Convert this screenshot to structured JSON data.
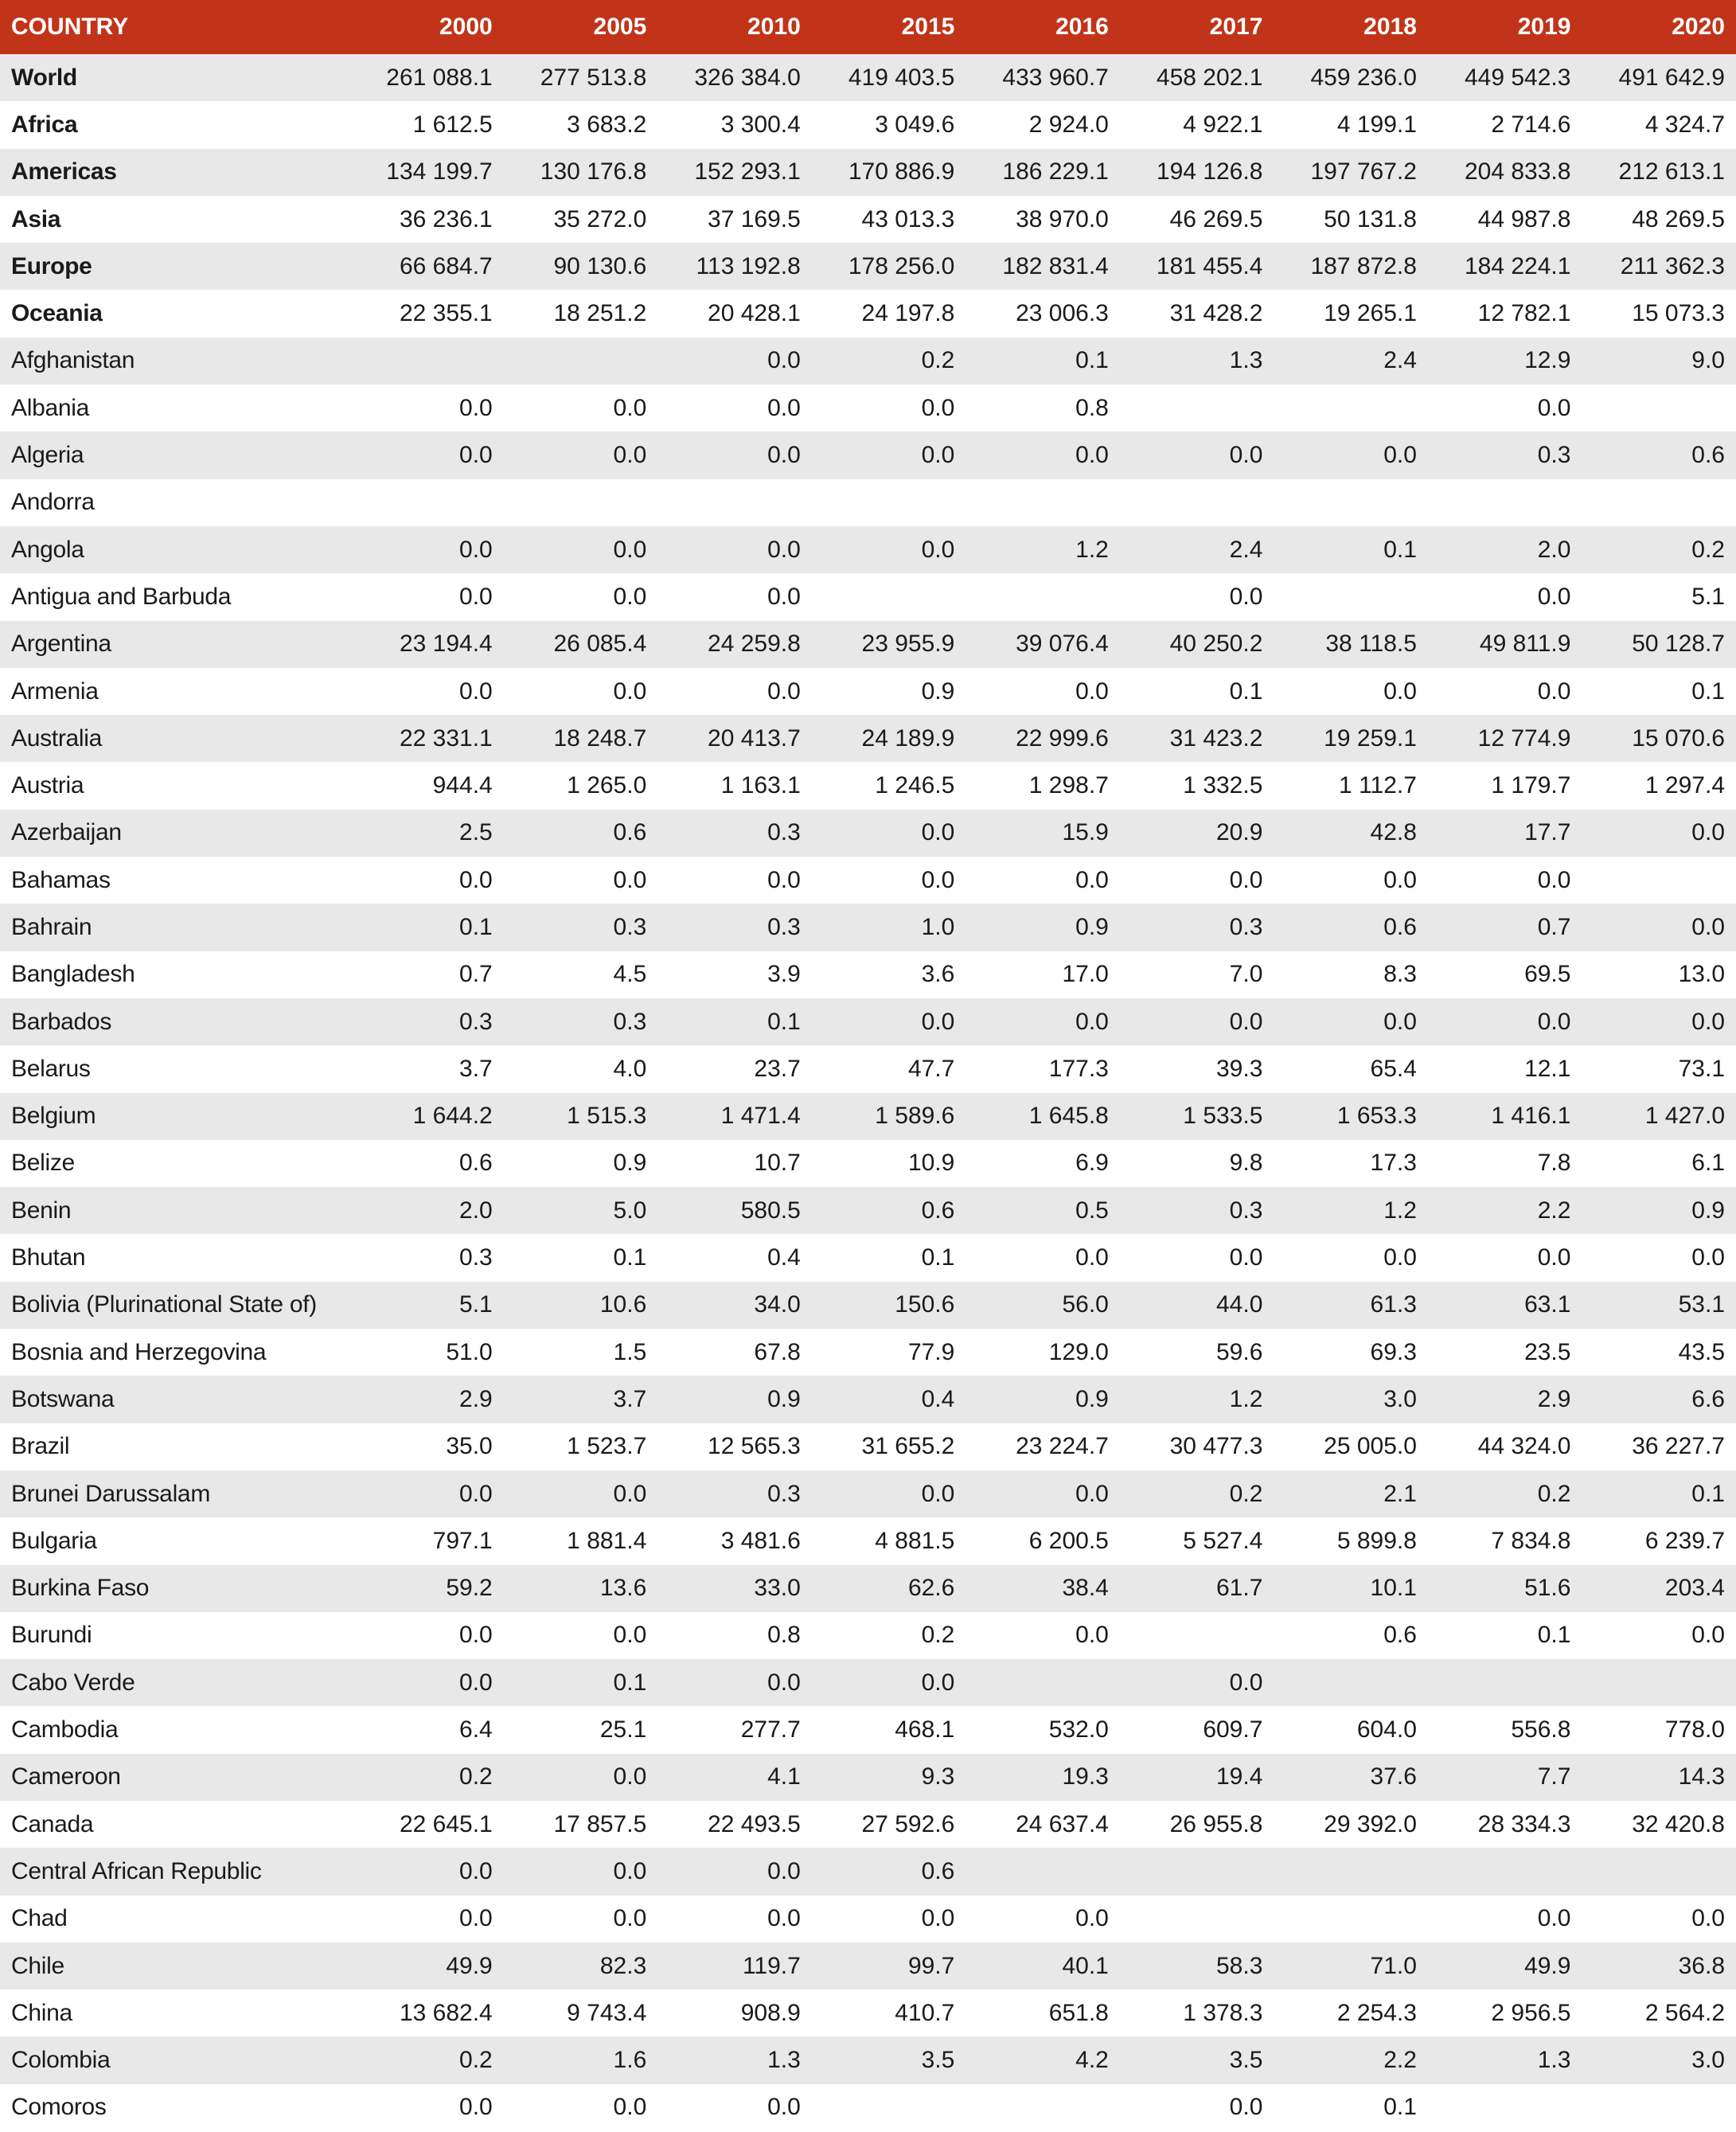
{
  "table": {
    "header": [
      "COUNTRY",
      "2000",
      "2005",
      "2010",
      "2015",
      "2016",
      "2017",
      "2018",
      "2019",
      "2020"
    ],
    "rows": [
      [
        "World",
        "261 088.1",
        "277 513.8",
        "326 384.0",
        "419 403.5",
        "433 960.7",
        "458 202.1",
        "459 236.0",
        "449 542.3",
        "491 642.9"
      ],
      [
        "Africa",
        "1 612.5",
        "3 683.2",
        "3 300.4",
        "3 049.6",
        "2 924.0",
        "4 922.1",
        "4 199.1",
        "2 714.6",
        "4 324.7"
      ],
      [
        "Americas",
        "134 199.7",
        "130 176.8",
        "152 293.1",
        "170 886.9",
        "186 229.1",
        "194 126.8",
        "197 767.2",
        "204 833.8",
        "212 613.1"
      ],
      [
        "Asia",
        "36 236.1",
        "35 272.0",
        "37 169.5",
        "43 013.3",
        "38 970.0",
        "46 269.5",
        "50 131.8",
        "44 987.8",
        "48 269.5"
      ],
      [
        "Europe",
        "66 684.7",
        "90 130.6",
        "113 192.8",
        "178 256.0",
        "182 831.4",
        "181 455.4",
        "187 872.8",
        "184 224.1",
        "211 362.3"
      ],
      [
        "Oceania",
        "22 355.1",
        "18 251.2",
        "20 428.1",
        "24 197.8",
        "23 006.3",
        "31 428.2",
        "19 265.1",
        "12 782.1",
        "15 073.3"
      ],
      [
        "Afghanistan",
        null,
        null,
        "0.0",
        "0.2",
        "0.1",
        "1.3",
        "2.4",
        "12.9",
        "9.0"
      ],
      [
        "Albania",
        "0.0",
        "0.0",
        "0.0",
        "0.0",
        "0.8",
        null,
        null,
        "0.0",
        null
      ],
      [
        "Algeria",
        "0.0",
        "0.0",
        "0.0",
        "0.0",
        "0.0",
        "0.0",
        "0.0",
        "0.3",
        "0.6"
      ],
      [
        "Andorra",
        null,
        null,
        null,
        null,
        null,
        null,
        null,
        null,
        null
      ],
      [
        "Angola",
        "0.0",
        "0.0",
        "0.0",
        "0.0",
        "1.2",
        "2.4",
        "0.1",
        "2.0",
        "0.2"
      ],
      [
        "Antigua and Barbuda",
        "0.0",
        "0.0",
        "0.0",
        null,
        null,
        "0.0",
        null,
        "0.0",
        "5.1"
      ],
      [
        "Argentina",
        "23 194.4",
        "26 085.4",
        "24 259.8",
        "23 955.9",
        "39 076.4",
        "40 250.2",
        "38 118.5",
        "49 811.9",
        "50 128.7"
      ],
      [
        "Armenia",
        "0.0",
        "0.0",
        "0.0",
        "0.9",
        "0.0",
        "0.1",
        "0.0",
        "0.0",
        "0.1"
      ],
      [
        "Australia",
        "22 331.1",
        "18 248.7",
        "20 413.7",
        "24 189.9",
        "22 999.6",
        "31 423.2",
        "19 259.1",
        "12 774.9",
        "15 070.6"
      ],
      [
        "Austria",
        "944.4",
        "1 265.0",
        "1 163.1",
        "1 246.5",
        "1 298.7",
        "1 332.5",
        "1 112.7",
        "1 179.7",
        "1 297.4"
      ],
      [
        "Azerbaijan",
        "2.5",
        "0.6",
        "0.3",
        "0.0",
        "15.9",
        "20.9",
        "42.8",
        "17.7",
        "0.0"
      ],
      [
        "Bahamas",
        "0.0",
        "0.0",
        "0.0",
        "0.0",
        "0.0",
        "0.0",
        "0.0",
        "0.0",
        null
      ],
      [
        "Bahrain",
        "0.1",
        "0.3",
        "0.3",
        "1.0",
        "0.9",
        "0.3",
        "0.6",
        "0.7",
        "0.0"
      ],
      [
        "Bangladesh",
        "0.7",
        "4.5",
        "3.9",
        "3.6",
        "17.0",
        "7.0",
        "8.3",
        "69.5",
        "13.0"
      ],
      [
        "Barbados",
        "0.3",
        "0.3",
        "0.1",
        "0.0",
        "0.0",
        "0.0",
        "0.0",
        "0.0",
        "0.0"
      ],
      [
        "Belarus",
        "3.7",
        "4.0",
        "23.7",
        "47.7",
        "177.3",
        "39.3",
        "65.4",
        "12.1",
        "73.1"
      ],
      [
        "Belgium",
        "1 644.2",
        "1 515.3",
        "1 471.4",
        "1 589.6",
        "1 645.8",
        "1 533.5",
        "1 653.3",
        "1 416.1",
        "1 427.0"
      ],
      [
        "Belize",
        "0.6",
        "0.9",
        "10.7",
        "10.9",
        "6.9",
        "9.8",
        "17.3",
        "7.8",
        "6.1"
      ],
      [
        "Benin",
        "2.0",
        "5.0",
        "580.5",
        "0.6",
        "0.5",
        "0.3",
        "1.2",
        "2.2",
        "0.9"
      ],
      [
        "Bhutan",
        "0.3",
        "0.1",
        "0.4",
        "0.1",
        "0.0",
        "0.0",
        "0.0",
        "0.0",
        "0.0"
      ],
      [
        "Bolivia (Plurinational State of)",
        "5.1",
        "10.6",
        "34.0",
        "150.6",
        "56.0",
        "44.0",
        "61.3",
        "63.1",
        "53.1"
      ],
      [
        "Bosnia and Herzegovina",
        "51.0",
        "1.5",
        "67.8",
        "77.9",
        "129.0",
        "59.6",
        "69.3",
        "23.5",
        "43.5"
      ],
      [
        "Botswana",
        "2.9",
        "3.7",
        "0.9",
        "0.4",
        "0.9",
        "1.2",
        "3.0",
        "2.9",
        "6.6"
      ],
      [
        "Brazil",
        "35.0",
        "1 523.7",
        "12 565.3",
        "31 655.2",
        "23 224.7",
        "30 477.3",
        "25 005.0",
        "44 324.0",
        "36 227.7"
      ],
      [
        "Brunei Darussalam",
        "0.0",
        "0.0",
        "0.3",
        "0.0",
        "0.0",
        "0.2",
        "2.1",
        "0.2",
        "0.1"
      ],
      [
        "Bulgaria",
        "797.1",
        "1 881.4",
        "3 481.6",
        "4 881.5",
        "6 200.5",
        "5 527.4",
        "5 899.8",
        "7 834.8",
        "6 239.7"
      ],
      [
        "Burkina Faso",
        "59.2",
        "13.6",
        "33.0",
        "62.6",
        "38.4",
        "61.7",
        "10.1",
        "51.6",
        "203.4"
      ],
      [
        "Burundi",
        "0.0",
        "0.0",
        "0.8",
        "0.2",
        "0.0",
        null,
        "0.6",
        "0.1",
        "0.0"
      ],
      [
        "Cabo Verde",
        "0.0",
        "0.1",
        "0.0",
        "0.0",
        null,
        "0.0",
        null,
        null,
        null
      ],
      [
        "Cambodia",
        "6.4",
        "25.1",
        "277.7",
        "468.1",
        "532.0",
        "609.7",
        "604.0",
        "556.8",
        "778.0"
      ],
      [
        "Cameroon",
        "0.2",
        "0.0",
        "4.1",
        "9.3",
        "19.3",
        "19.4",
        "37.6",
        "7.7",
        "14.3"
      ],
      [
        "Canada",
        "22 645.1",
        "17 857.5",
        "22 493.5",
        "27 592.6",
        "24 637.4",
        "26 955.8",
        "29 392.0",
        "28 334.3",
        "32 420.8"
      ],
      [
        "Central African Republic",
        "0.0",
        "0.0",
        "0.0",
        "0.6",
        null,
        null,
        null,
        null,
        null
      ],
      [
        "Chad",
        "0.0",
        "0.0",
        "0.0",
        "0.0",
        "0.0",
        null,
        null,
        "0.0",
        "0.0"
      ],
      [
        "Chile",
        "49.9",
        "82.3",
        "119.7",
        "99.7",
        "40.1",
        "58.3",
        "71.0",
        "49.9",
        "36.8"
      ],
      [
        "China",
        "13 682.4",
        "9 743.4",
        "908.9",
        "410.7",
        "651.8",
        "1 378.3",
        "2 254.3",
        "2 956.5",
        "2 564.2"
      ],
      [
        "Colombia",
        "0.2",
        "1.6",
        "1.3",
        "3.5",
        "4.2",
        "3.5",
        "2.2",
        "1.3",
        "3.0"
      ],
      [
        "Comoros",
        "0.0",
        "0.0",
        "0.0",
        null,
        null,
        "0.0",
        "0.1",
        null,
        null
      ]
    ]
  }
}
